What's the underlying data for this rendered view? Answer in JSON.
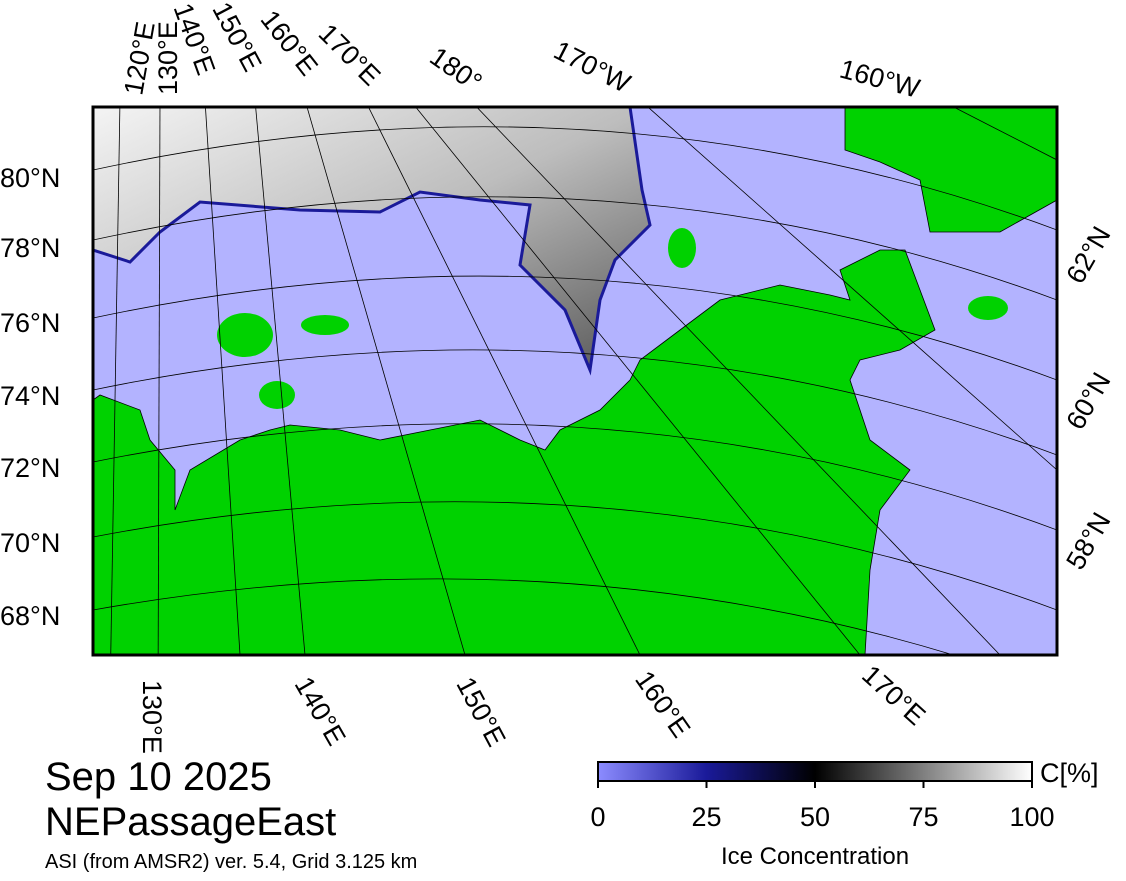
{
  "map": {
    "top_labels": [
      "120°E",
      "130°E",
      "140°E",
      "150°E",
      "160°E",
      "170°E",
      "180°",
      "170°W",
      "160°W"
    ],
    "left_labels": [
      "80°N",
      "78°N",
      "76°N",
      "74°N",
      "72°N",
      "70°N",
      "68°N"
    ],
    "right_labels": [
      "62°N",
      "60°N",
      "58°N"
    ],
    "bottom_labels": [
      "130°E",
      "140°E",
      "150°E",
      "160°E",
      "170°E"
    ]
  },
  "date": "Sep 10 2025",
  "region": "NEPassageEast",
  "source": "ASI (from AMSR2) ver. 5.4,  Grid 3.125 km",
  "colorbar": {
    "lim": [
      0,
      100
    ],
    "ticks": [
      0,
      25,
      50,
      75,
      100
    ],
    "unit": "C[%]",
    "label": "Ice Concentration"
  }
}
